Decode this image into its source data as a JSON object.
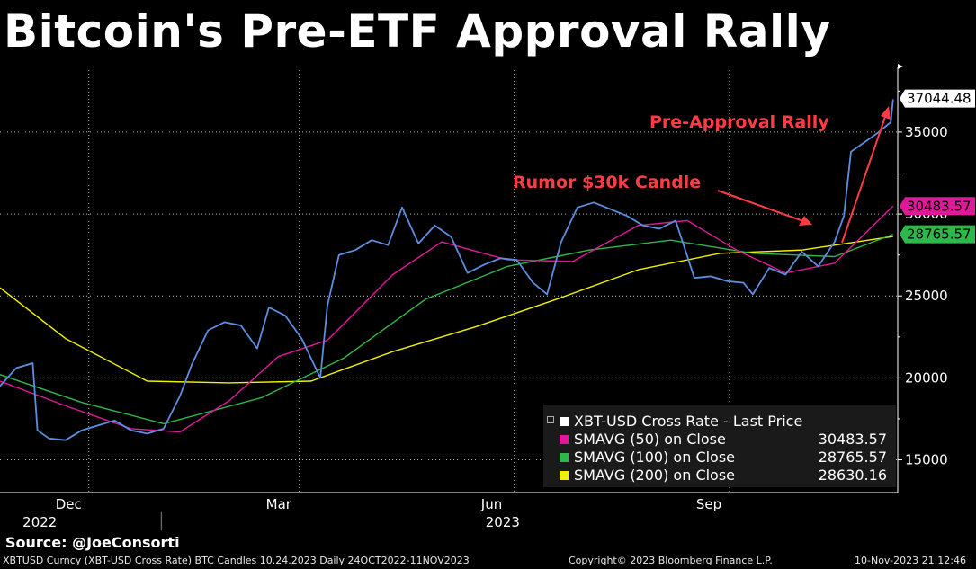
{
  "title": "Bitcoin's Pre-ETF Approval Rally",
  "source": "Source: @JoeConsorti",
  "footer": {
    "left": "XBTUSD Curncy (XBT-USD Cross Rate) BTC Candles 10.24.2023  Daily 24OCT2022-11NOV2023",
    "center": "Copyright© 2023 Bloomberg Finance L.P.",
    "right": "10-Nov-2023 21:12:46"
  },
  "legend": {
    "items": [
      {
        "name": "XBT-USD Cross Rate - Last Price",
        "value": "",
        "color": "#ffffff"
      },
      {
        "name": "SMAVG (50)  on Close",
        "value": "30483.57",
        "color": "#e0199a"
      },
      {
        "name": "SMAVG (100)  on Close",
        "value": "28765.57",
        "color": "#2fb84a"
      },
      {
        "name": "SMAVG (200)  on Close",
        "value": "28630.16",
        "color": "#f2f200"
      }
    ]
  },
  "chart_data": {
    "type": "line",
    "ylim": [
      13000,
      39000
    ],
    "y_ticks": [
      15000,
      20000,
      25000,
      30000,
      35000
    ],
    "y_tick_labels": [
      "15000",
      "20000",
      "25000",
      "30000",
      "35000"
    ],
    "grid": true,
    "legend_placement": "bottom-right",
    "x_ticks": [
      {
        "date": "2022-12-01",
        "label": "Dec"
      },
      {
        "date": "2023-03-01",
        "label": "Mar"
      },
      {
        "date": "2023-06-01",
        "label": "Jun"
      },
      {
        "date": "2023-09-01",
        "label": "Sep"
      }
    ],
    "year_labels": [
      {
        "date": "2022-11-15",
        "label": "2022"
      },
      {
        "date": "2023-06-01",
        "label": "2023"
      }
    ],
    "year_separator_date": "2023-01-01",
    "price_tags": [
      {
        "label": "37044.48",
        "value": 37044.48,
        "bg": "#ffffff",
        "fg": "#000000"
      },
      {
        "label": "30483.57",
        "value": 30483.57,
        "bg": "#e0199a",
        "fg": "#000000"
      },
      {
        "label": "28765.57",
        "value": 28765.57,
        "bg": "#2fb84a",
        "fg": "#000000"
      }
    ],
    "annotations": [
      {
        "text": "Pre-Approval Rally",
        "color": "#ff3b46"
      },
      {
        "text": "Rumor $30k Candle",
        "color": "#ff3b46"
      }
    ],
    "series": [
      {
        "name": "XBT-USD Cross Rate - Last Price",
        "color": "#5c8fe0",
        "x": [
          "2022-10-24",
          "2022-10-31",
          "2022-11-07",
          "2022-11-09",
          "2022-11-14",
          "2022-11-21",
          "2022-11-28",
          "2022-12-05",
          "2022-12-12",
          "2022-12-19",
          "2022-12-26",
          "2023-01-02",
          "2023-01-09",
          "2023-01-14",
          "2023-01-21",
          "2023-01-28",
          "2023-02-04",
          "2023-02-11",
          "2023-02-16",
          "2023-02-23",
          "2023-03-02",
          "2023-03-10",
          "2023-03-13",
          "2023-03-18",
          "2023-03-25",
          "2023-04-01",
          "2023-04-08",
          "2023-04-14",
          "2023-04-21",
          "2023-04-28",
          "2023-05-05",
          "2023-05-12",
          "2023-05-19",
          "2023-05-26",
          "2023-06-02",
          "2023-06-09",
          "2023-06-15",
          "2023-06-21",
          "2023-06-28",
          "2023-07-05",
          "2023-07-12",
          "2023-07-19",
          "2023-07-26",
          "2023-08-02",
          "2023-08-09",
          "2023-08-17",
          "2023-08-24",
          "2023-08-31",
          "2023-09-07",
          "2023-09-11",
          "2023-09-18",
          "2023-09-25",
          "2023-10-02",
          "2023-10-09",
          "2023-10-16",
          "2023-10-20",
          "2023-10-23",
          "2023-10-27",
          "2023-11-03",
          "2023-11-09",
          "2023-11-10"
        ],
        "values": [
          19500,
          20600,
          20900,
          16800,
          16300,
          16200,
          16800,
          17100,
          17400,
          16800,
          16600,
          16900,
          18900,
          20800,
          22900,
          23400,
          23200,
          21800,
          24300,
          23800,
          22400,
          20000,
          24400,
          27500,
          27800,
          28400,
          28100,
          30400,
          28200,
          29300,
          28600,
          26400,
          26900,
          27300,
          27200,
          25800,
          25100,
          28300,
          30400,
          30700,
          30300,
          29900,
          29300,
          29100,
          29600,
          26100,
          26200,
          25900,
          25800,
          25100,
          26700,
          26300,
          27700,
          26800,
          28300,
          29900,
          33800,
          34200,
          34900,
          35600,
          37000
        ]
      },
      {
        "name": "SMAVG (50)  on Close",
        "color": "#e0199a",
        "x": [
          "2022-10-24",
          "2022-11-21",
          "2022-12-19",
          "2023-01-09",
          "2023-01-30",
          "2023-02-20",
          "2023-03-13",
          "2023-04-10",
          "2023-05-01",
          "2023-05-29",
          "2023-06-26",
          "2023-07-24",
          "2023-08-14",
          "2023-09-04",
          "2023-09-25",
          "2023-10-16",
          "2023-11-10"
        ],
        "values": [
          19800,
          18300,
          16900,
          16700,
          18600,
          21300,
          22300,
          26300,
          28300,
          27200,
          27100,
          29300,
          29600,
          27800,
          26400,
          27000,
          30483.57
        ]
      },
      {
        "name": "SMAVG (100)  on Close",
        "color": "#2fb84a",
        "x": [
          "2022-10-24",
          "2022-11-28",
          "2023-01-02",
          "2023-02-13",
          "2023-03-20",
          "2023-04-24",
          "2023-05-29",
          "2023-07-03",
          "2023-08-07",
          "2023-09-11",
          "2023-10-16",
          "2023-11-10"
        ],
        "values": [
          20200,
          18500,
          17200,
          18800,
          21200,
          24800,
          26800,
          27800,
          28400,
          27600,
          27400,
          28765.57
        ]
      },
      {
        "name": "SMAVG (200)  on Close",
        "color": "#f2f200",
        "x": [
          "2022-10-24",
          "2022-11-21",
          "2022-12-26",
          "2023-01-30",
          "2023-03-06",
          "2023-04-10",
          "2023-05-15",
          "2023-06-19",
          "2023-07-24",
          "2023-08-28",
          "2023-10-02",
          "2023-11-10"
        ],
        "values": [
          25500,
          22400,
          19800,
          19700,
          19800,
          21600,
          23100,
          24800,
          26600,
          27600,
          27800,
          28630.16
        ]
      }
    ]
  }
}
